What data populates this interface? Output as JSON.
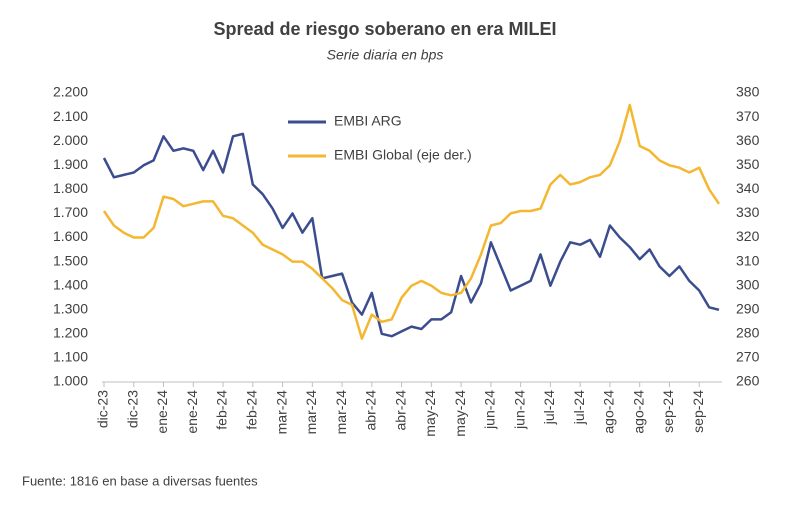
{
  "chart_data": {
    "type": "line",
    "title": "Spread de riesgo soberano en era MILEI",
    "subtitle": "Serie diaria en bps",
    "source": "Fuente: 1816  en base a diversas fuentes",
    "categories": [
      "dic-23",
      null,
      null,
      "dic-23",
      null,
      null,
      "ene-24",
      null,
      null,
      "ene-24",
      null,
      null,
      "feb-24",
      null,
      null,
      "feb-24",
      null,
      null,
      "mar-24",
      null,
      null,
      "mar-24",
      null,
      null,
      "mar-24",
      null,
      null,
      "abr-24",
      null,
      null,
      "abr-24",
      null,
      null,
      "may-24",
      null,
      null,
      "may-24",
      null,
      null,
      "jun-24",
      null,
      null,
      "jun-24",
      null,
      null,
      "jul-24",
      null,
      null,
      "jul-24",
      null,
      null,
      "ago-24",
      null,
      null,
      "ago-24",
      null,
      null,
      "sep-24",
      null,
      null,
      "sep-24",
      null,
      null
    ],
    "series": [
      {
        "name": "EMBI ARG",
        "color": "#3b4d8f",
        "axis": "y",
        "values": [
          1930,
          1850,
          1860,
          1870,
          1900,
          1920,
          2020,
          1960,
          1970,
          1960,
          1880,
          1960,
          1870,
          2020,
          2030,
          1820,
          1780,
          1720,
          1640,
          1700,
          1620,
          1680,
          1430,
          1440,
          1450,
          1330,
          1280,
          1370,
          1200,
          1190,
          1210,
          1230,
          1220,
          1260,
          1260,
          1290,
          1440,
          1330,
          1410,
          1580,
          1480,
          1380,
          1400,
          1420,
          1530,
          1400,
          1500,
          1580,
          1570,
          1590,
          1520,
          1650,
          1600,
          1560,
          1510,
          1550,
          1480,
          1440,
          1480,
          1420,
          1380,
          1310,
          1300
        ]
      },
      {
        "name": "EMBI Global (eje der.)",
        "color": "#f4b731",
        "axis": "y2",
        "values": [
          331,
          325,
          322,
          320,
          320,
          324,
          337,
          336,
          333,
          334,
          335,
          335,
          329,
          328,
          325,
          322,
          317,
          315,
          313,
          310,
          310,
          307,
          303,
          299,
          294,
          292,
          278,
          288,
          285,
          286,
          295,
          300,
          302,
          300,
          297,
          296,
          297,
          303,
          313,
          325,
          326,
          330,
          331,
          331,
          332,
          342,
          346,
          342,
          343,
          345,
          346,
          350,
          360,
          375,
          358,
          356,
          352,
          350,
          349,
          347,
          349,
          340,
          334
        ]
      }
    ],
    "ylim": [
      1000,
      2200
    ],
    "yticks": [
      {
        "value": 1000,
        "label": "1.000"
      },
      {
        "value": 1100,
        "label": "1.100"
      },
      {
        "value": 1200,
        "label": "1.200"
      },
      {
        "value": 1300,
        "label": "1.300"
      },
      {
        "value": 1400,
        "label": "1.400"
      },
      {
        "value": 1500,
        "label": "1.500"
      },
      {
        "value": 1600,
        "label": "1.600"
      },
      {
        "value": 1700,
        "label": "1.700"
      },
      {
        "value": 1800,
        "label": "1.800"
      },
      {
        "value": 1900,
        "label": "1.900"
      },
      {
        "value": 2000,
        "label": "2.000"
      },
      {
        "value": 2100,
        "label": "2.100"
      },
      {
        "value": 2200,
        "label": "2.200"
      }
    ],
    "y2lim": [
      260,
      380
    ],
    "y2ticks": [
      260,
      270,
      280,
      290,
      300,
      310,
      320,
      330,
      340,
      350,
      360,
      370,
      380
    ],
    "grid": false,
    "legend": "top"
  }
}
